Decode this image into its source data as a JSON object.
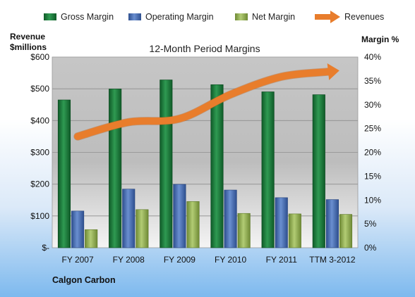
{
  "chart_data": {
    "type": "bar",
    "title": "12-Month Period Margins",
    "company": "Calgon Carbon",
    "categories": [
      "FY 2007",
      "FY 2008",
      "FY 2009",
      "FY 2010",
      "FY 2011",
      "TTM 3-2012"
    ],
    "series": [
      {
        "name": "Gross Margin",
        "axis": "right",
        "color": "#1e7a3c",
        "values": [
          31,
          33.3,
          35.2,
          34.2,
          32.7,
          32.1
        ]
      },
      {
        "name": "Operating Margin",
        "axis": "right",
        "color": "#4a6fb3",
        "values": [
          7.7,
          12.3,
          13.3,
          12.1,
          10.5,
          10.1
        ]
      },
      {
        "name": "Net Margin",
        "axis": "right",
        "color": "#93b254",
        "values": [
          3.8,
          8,
          9.7,
          7.2,
          7.1,
          7
        ]
      },
      {
        "name": "Revenues",
        "axis": "left",
        "type": "line",
        "color": "#e87d2c",
        "values": [
          350,
          395,
          406,
          482,
          538,
          555
        ]
      }
    ],
    "left_axis": {
      "label_line1": "Revenue",
      "label_line2": "$millions",
      "ylim": [
        0,
        600
      ],
      "tick_values": [
        0,
        100,
        200,
        300,
        400,
        500,
        600
      ],
      "tick_labels": [
        "$-",
        "$100",
        "$200",
        "$300",
        "$400",
        "$500",
        "$600"
      ]
    },
    "right_axis": {
      "label": "Margin %",
      "ylim": [
        0,
        40
      ],
      "tick_values": [
        0,
        5,
        10,
        15,
        20,
        25,
        30,
        35,
        40
      ],
      "tick_labels": [
        "0%",
        "5%",
        "10%",
        "15%",
        "20%",
        "25%",
        "30%",
        "35%",
        "40%"
      ]
    },
    "grid": true,
    "legend_position": "top"
  }
}
